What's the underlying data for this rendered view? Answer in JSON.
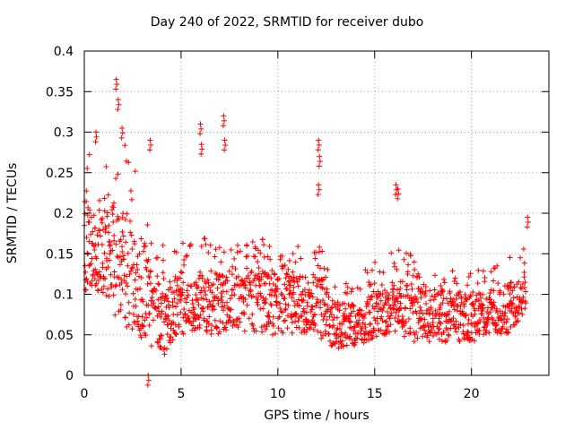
{
  "chart_data": {
    "type": "scatter",
    "title": "Day 240 of 2022, SRMTID for receiver dubo",
    "xlabel": "GPS time / hours",
    "ylabel": "SRMTID / TECUs",
    "xlim": [
      0,
      24
    ],
    "ylim": [
      0,
      0.4
    ],
    "xticks": [
      0,
      5,
      10,
      15,
      20
    ],
    "xtick_labels": [
      "0",
      "5",
      "10",
      "15",
      "20"
    ],
    "yticks": [
      0,
      0.05,
      0.1,
      0.15,
      0.2,
      0.25,
      0.3,
      0.35,
      0.4
    ],
    "ytick_labels": [
      "0",
      "0.05",
      "0.1",
      "0.15",
      "0.2",
      "0.25",
      "0.3",
      "0.35",
      "0.4"
    ],
    "grid": true,
    "marker": "+",
    "series": [
      {
        "name": "SRMTID",
        "color": "#ff0000",
        "description": "Dense scatter of several thousand 30-second samples; baseline values listed here as hourly envelope plus notable excursions",
        "envelope": [
          {
            "x": 0.0,
            "low": 0.09,
            "high": 0.29
          },
          {
            "x": 1.0,
            "low": 0.09,
            "high": 0.27
          },
          {
            "x": 2.0,
            "low": 0.06,
            "high": 0.29
          },
          {
            "x": 3.0,
            "low": 0.04,
            "high": 0.24
          },
          {
            "x": 4.0,
            "low": 0.02,
            "high": 0.16
          },
          {
            "x": 5.0,
            "low": 0.05,
            "high": 0.17
          },
          {
            "x": 6.0,
            "low": 0.05,
            "high": 0.17
          },
          {
            "x": 7.0,
            "low": 0.05,
            "high": 0.17
          },
          {
            "x": 8.0,
            "low": 0.05,
            "high": 0.16
          },
          {
            "x": 9.0,
            "low": 0.05,
            "high": 0.19
          },
          {
            "x": 10.0,
            "low": 0.05,
            "high": 0.17
          },
          {
            "x": 11.0,
            "low": 0.05,
            "high": 0.16
          },
          {
            "x": 12.0,
            "low": 0.05,
            "high": 0.17
          },
          {
            "x": 13.0,
            "low": 0.03,
            "high": 0.12
          },
          {
            "x": 14.0,
            "low": 0.03,
            "high": 0.12
          },
          {
            "x": 15.0,
            "low": 0.04,
            "high": 0.14
          },
          {
            "x": 16.0,
            "low": 0.05,
            "high": 0.16
          },
          {
            "x": 17.0,
            "low": 0.04,
            "high": 0.15
          },
          {
            "x": 18.0,
            "low": 0.04,
            "high": 0.14
          },
          {
            "x": 19.0,
            "low": 0.04,
            "high": 0.14
          },
          {
            "x": 20.0,
            "low": 0.04,
            "high": 0.13
          },
          {
            "x": 21.0,
            "low": 0.05,
            "high": 0.13
          },
          {
            "x": 22.0,
            "low": 0.05,
            "high": 0.15
          },
          {
            "x": 22.8,
            "low": 0.08,
            "high": 0.16
          }
        ],
        "peaks": [
          {
            "x": 1.65,
            "y": 0.365
          },
          {
            "x": 1.75,
            "y": 0.34
          },
          {
            "x": 1.95,
            "y": 0.305
          },
          {
            "x": 0.6,
            "y": 0.3
          },
          {
            "x": 3.4,
            "y": 0.29
          },
          {
            "x": 6.0,
            "y": 0.31
          },
          {
            "x": 6.05,
            "y": 0.285
          },
          {
            "x": 7.2,
            "y": 0.32
          },
          {
            "x": 7.25,
            "y": 0.29
          },
          {
            "x": 12.1,
            "y": 0.29
          },
          {
            "x": 12.15,
            "y": 0.27
          },
          {
            "x": 12.1,
            "y": 0.235
          },
          {
            "x": 16.1,
            "y": 0.235
          },
          {
            "x": 16.2,
            "y": 0.23
          },
          {
            "x": 22.9,
            "y": 0.195
          },
          {
            "x": 3.3,
            "y": 0.0
          }
        ]
      }
    ]
  }
}
